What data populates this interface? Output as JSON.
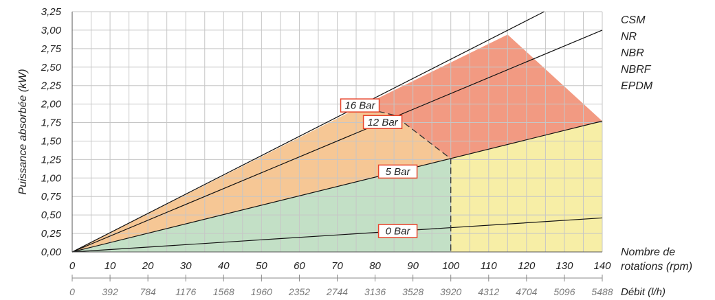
{
  "chart_data": {
    "type": "area",
    "ylabel": "Puissance absorbée (kW)",
    "xlabel": "Nombre de rotations (rpm)",
    "x2label": "Débit (l/h)",
    "xlim": [
      0,
      140
    ],
    "ylim": [
      0,
      3.25
    ],
    "x_ticks": [
      0,
      10,
      20,
      30,
      40,
      50,
      60,
      70,
      80,
      90,
      100,
      110,
      120,
      130,
      140
    ],
    "x_tick_labels": [
      "0",
      "10",
      "20",
      "30",
      "40",
      "50",
      "60",
      "70",
      "80",
      "90",
      "100",
      "110",
      "120",
      "130",
      "140"
    ],
    "x2_tick_labels": [
      "0",
      "392",
      "784",
      "1176",
      "1568",
      "1960",
      "2352",
      "2744",
      "3136",
      "3528",
      "3920",
      "4312",
      "4704",
      "5096",
      "5488"
    ],
    "y_ticks": [
      0,
      0.25,
      0.5,
      0.75,
      1.0,
      1.25,
      1.5,
      1.75,
      2.0,
      2.25,
      2.5,
      2.75,
      3.0,
      3.25
    ],
    "y_tick_labels": [
      "0,00",
      "0,25",
      "0,50",
      "0,75",
      "1,00",
      "1,25",
      "1,50",
      "1,75",
      "2,00",
      "2,25",
      "2,50",
      "2,75",
      "3,00",
      "3,25"
    ],
    "grid": true,
    "legend_position": "right",
    "material_labels": [
      {
        "text": "CSM",
        "color": "#222222"
      },
      {
        "text": "NR",
        "color": "#222222"
      },
      {
        "text": "NBR",
        "color": "#222222"
      },
      {
        "text": "NBRF",
        "color": "#222222"
      },
      {
        "text": "EPDM",
        "color": "#e8452c"
      }
    ],
    "series": [
      {
        "name": "0 Bar",
        "x": [
          0,
          140
        ],
        "y": [
          0,
          0.46
        ]
      },
      {
        "name": "5 Bar",
        "x": [
          0,
          140
        ],
        "y": [
          0,
          1.77
        ]
      },
      {
        "name": "12 Bar",
        "x": [
          0,
          140
        ],
        "y": [
          0,
          3.0
        ]
      },
      {
        "name": "16 Bar",
        "x": [
          0,
          140
        ],
        "y": [
          0,
          3.65
        ]
      }
    ],
    "series_label_at_x": [
      86,
      86,
      82,
      76
    ],
    "zones": [
      {
        "id": "green",
        "color": "#c3e0c6",
        "x": [
          0,
          100,
          100
        ],
        "y": [
          0,
          0,
          1.26
        ]
      },
      {
        "id": "yellow",
        "color": "#f7eea6",
        "x": [
          100,
          140,
          140,
          100
        ],
        "y": [
          0,
          0,
          1.77,
          1.26
        ]
      },
      {
        "id": "orange",
        "color": "#f6c795",
        "x": [
          0,
          100,
          85,
          76
        ],
        "y": [
          0,
          1.26,
          1.85,
          1.96
        ]
      },
      {
        "id": "red",
        "color": "#f29a82",
        "x": [
          76,
          85,
          100,
          140,
          115
        ],
        "y": [
          1.96,
          1.85,
          1.26,
          1.77,
          2.94
        ]
      }
    ],
    "limit_curve": {
      "x": [
        76,
        85,
        100,
        100
      ],
      "y": [
        1.96,
        1.85,
        1.26,
        0
      ],
      "style": "dashed"
    }
  }
}
